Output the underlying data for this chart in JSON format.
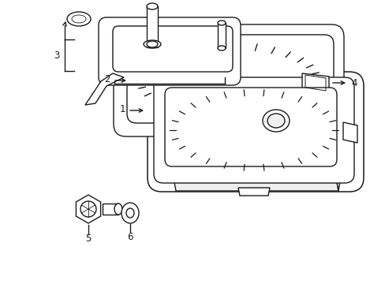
{
  "background_color": "#ffffff",
  "line_color": "#1a1a1a",
  "line_width": 1.0,
  "fig_w": 4.89,
  "fig_h": 3.6,
  "dpi": 100
}
